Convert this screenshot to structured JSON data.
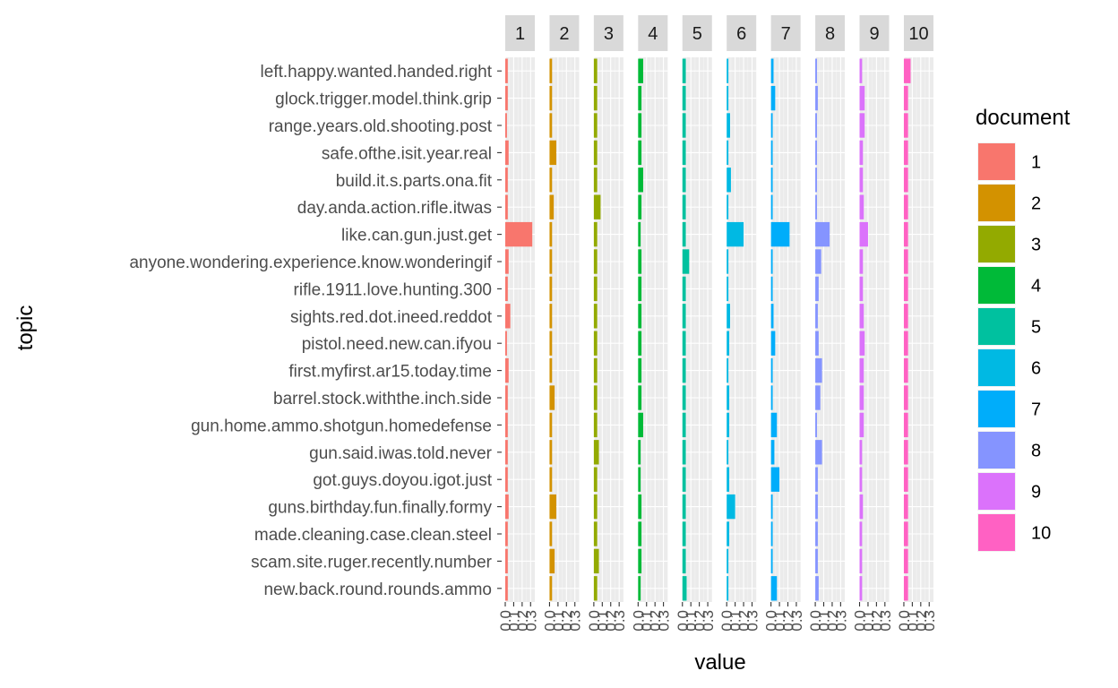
{
  "chart_data": {
    "type": "bar",
    "orientation": "horizontal",
    "facet": "document",
    "xlabel": "value",
    "ylabel": "topic",
    "legend": {
      "title": "document",
      "position": "right"
    },
    "x_tick_labels": [
      "0.0",
      "0.1",
      "0.2",
      "0.3"
    ],
    "xlim": [
      0,
      0.35
    ],
    "grid": true,
    "topics": [
      "left.happy.wanted.handed.right",
      "glock.trigger.model.think.grip",
      "range.years.old.shooting.post",
      "safe.ofthe.isit.year.real",
      "build.it.s.parts.ona.fit",
      "day.anda.action.rifle.itwas",
      "like.can.gun.just.get",
      "anyone.wondering.experience.know.wonderingif",
      "rifle.1911.love.hunting.300",
      "sights.red.dot.ineed.reddot",
      "pistol.need.new.can.ifyou",
      "first.myfirst.ar15.today.time",
      "barrel.stock.withthe.inch.side",
      "gun.home.ammo.shotgun.homedefense",
      "gun.said.iwas.told.never",
      "got.guys.doyou.igot.just",
      "guns.birthday.fun.finally.formy",
      "made.cleaning.case.clean.steel",
      "scam.site.ruger.recently.number",
      "new.back.round.rounds.ammo"
    ],
    "series": [
      {
        "name": "1",
        "color": "#F8766D",
        "values": [
          0.03,
          0.03,
          0.02,
          0.04,
          0.03,
          0.03,
          0.32,
          0.04,
          0.03,
          0.06,
          0.02,
          0.04,
          0.03,
          0.03,
          0.03,
          0.03,
          0.04,
          0.03,
          0.03,
          0.03
        ]
      },
      {
        "name": "2",
        "color": "#D39200",
        "values": [
          0.03,
          0.03,
          0.03,
          0.08,
          0.03,
          0.05,
          0.03,
          0.03,
          0.03,
          0.03,
          0.03,
          0.03,
          0.06,
          0.03,
          0.03,
          0.03,
          0.08,
          0.03,
          0.06,
          0.03
        ]
      },
      {
        "name": "3",
        "color": "#93AA00",
        "values": [
          0.04,
          0.04,
          0.04,
          0.04,
          0.04,
          0.08,
          0.04,
          0.04,
          0.04,
          0.04,
          0.04,
          0.04,
          0.04,
          0.04,
          0.06,
          0.04,
          0.04,
          0.04,
          0.06,
          0.04
        ]
      },
      {
        "name": "4",
        "color": "#00BA38",
        "values": [
          0.06,
          0.04,
          0.04,
          0.04,
          0.06,
          0.04,
          0.03,
          0.04,
          0.04,
          0.04,
          0.04,
          0.04,
          0.04,
          0.06,
          0.03,
          0.03,
          0.04,
          0.04,
          0.04,
          0.03
        ]
      },
      {
        "name": "5",
        "color": "#00C19F",
        "values": [
          0.04,
          0.04,
          0.04,
          0.04,
          0.04,
          0.04,
          0.04,
          0.08,
          0.04,
          0.04,
          0.04,
          0.04,
          0.04,
          0.04,
          0.04,
          0.04,
          0.04,
          0.04,
          0.04,
          0.05
        ]
      },
      {
        "name": "6",
        "color": "#00B9E3",
        "values": [
          0.02,
          0.02,
          0.04,
          0.02,
          0.05,
          0.02,
          0.2,
          0.02,
          0.02,
          0.04,
          0.03,
          0.02,
          0.03,
          0.03,
          0.02,
          0.03,
          0.1,
          0.03,
          0.02,
          0.02
        ]
      },
      {
        "name": "7",
        "color": "#00ADFA",
        "values": [
          0.03,
          0.05,
          0.02,
          0.02,
          0.02,
          0.02,
          0.22,
          0.02,
          0.02,
          0.03,
          0.05,
          0.02,
          0.02,
          0.07,
          0.04,
          0.1,
          0.02,
          0.02,
          0.02,
          0.07
        ]
      },
      {
        "name": "8",
        "color": "#8594FF",
        "values": [
          0.02,
          0.03,
          0.02,
          0.02,
          0.02,
          0.02,
          0.17,
          0.07,
          0.04,
          0.03,
          0.04,
          0.08,
          0.06,
          0.02,
          0.08,
          0.03,
          0.03,
          0.03,
          0.03,
          0.04
        ]
      },
      {
        "name": "9",
        "color": "#DB72FB",
        "values": [
          0.03,
          0.06,
          0.06,
          0.04,
          0.04,
          0.05,
          0.1,
          0.04,
          0.04,
          0.05,
          0.06,
          0.05,
          0.05,
          0.05,
          0.03,
          0.03,
          0.04,
          0.03,
          0.03,
          0.03
        ]
      },
      {
        "name": "10",
        "color": "#FF61C3",
        "values": [
          0.08,
          0.05,
          0.05,
          0.05,
          0.05,
          0.05,
          0.05,
          0.05,
          0.05,
          0.05,
          0.05,
          0.05,
          0.05,
          0.05,
          0.05,
          0.05,
          0.05,
          0.05,
          0.05,
          0.05
        ]
      }
    ]
  }
}
